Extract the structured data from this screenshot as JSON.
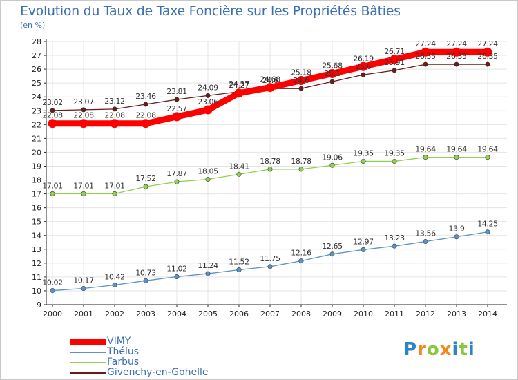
{
  "header": {
    "title": "Evolution du Taux de Taxe Foncière sur les Propriétés Bâties",
    "unit": "(en %)"
  },
  "logo": {
    "text": "Proxiti",
    "letters": [
      {
        "ch": "P",
        "color": "#2e83c7"
      },
      {
        "ch": "r",
        "color": "#f28a1b"
      },
      {
        "ch": "o",
        "color": "#8cc63f"
      },
      {
        "ch": "x",
        "color": "#f28a1b"
      },
      {
        "ch": "i",
        "color": "#2e83c7"
      },
      {
        "ch": "t",
        "color": "#8cc63f"
      },
      {
        "ch": "i",
        "color": "#2e83c7"
      }
    ]
  },
  "colors": {
    "axis": "#222222",
    "grid": "#e4e4e4",
    "tick_text": "#222222",
    "label_text": "#333333"
  },
  "chart_data": {
    "type": "line",
    "title": "Evolution du Taux de Taxe Foncière sur les Propriétés Bâties",
    "ylabel": "(en %)",
    "xlabel": "",
    "x": [
      "2000",
      "2001",
      "2002",
      "2003",
      "2004",
      "2005",
      "2006",
      "2007",
      "2008",
      "2009",
      "2010",
      "2011",
      "2012",
      "2013",
      "2014"
    ],
    "ylim": [
      9,
      28
    ],
    "yticks": [
      "9",
      "10",
      "11",
      "12",
      "13",
      "14",
      "15",
      "16",
      "17",
      "18",
      "19",
      "20",
      "21",
      "22",
      "23",
      "24",
      "25",
      "26",
      "27",
      "28"
    ],
    "grid": true,
    "legend_position": "bottom-left",
    "series": [
      {
        "name": "VIMY",
        "color": "#ff0000",
        "emphasis": "thick",
        "values": [
          22.08,
          22.08,
          22.08,
          22.08,
          22.57,
          23.06,
          24.27,
          24.68,
          25.18,
          25.68,
          26.19,
          26.71,
          27.24,
          27.24,
          27.24
        ],
        "labels": [
          "22.08",
          "22.08",
          "22.08",
          "22.08",
          "22.57",
          "23.06",
          "24.27",
          "24.68",
          "25.18",
          "25.68",
          "26.19",
          "26.71",
          "27.24",
          "27.24",
          "27.24"
        ]
      },
      {
        "name": "Thélus",
        "color": "#5b93c9",
        "emphasis": "normal",
        "values": [
          10.02,
          10.17,
          10.42,
          10.73,
          11.02,
          11.24,
          11.52,
          11.75,
          12.16,
          12.65,
          12.97,
          13.23,
          13.56,
          13.9,
          14.25
        ],
        "labels": [
          "10.02",
          "10.17",
          "10.42",
          "10.73",
          "11.02",
          "11.24",
          "11.52",
          "11.75",
          "12.16",
          "12.65",
          "12.97",
          "13.23",
          "13.56",
          "13.9",
          "14.25"
        ]
      },
      {
        "name": "Farbus",
        "color": "#8fd14f",
        "emphasis": "normal",
        "values": [
          17.01,
          17.01,
          17.01,
          17.52,
          17.87,
          18.05,
          18.41,
          18.78,
          18.78,
          19.06,
          19.35,
          19.35,
          19.64,
          19.64,
          19.64
        ],
        "labels": [
          "17.01",
          "17.01",
          "17.01",
          "17.52",
          "17.87",
          "18.05",
          "18.41",
          "18.78",
          "18.78",
          "19.06",
          "19.35",
          "19.35",
          "19.64",
          "19.64",
          "19.64"
        ]
      },
      {
        "name": "Givenchy-en-Gohelle",
        "color": "#6b1a1a",
        "emphasis": "normal",
        "values": [
          23.02,
          23.07,
          23.12,
          23.46,
          23.81,
          24.09,
          24.37,
          24.6,
          24.6,
          25.1,
          25.6,
          25.91,
          26.35,
          26.35,
          26.35
        ],
        "labels": [
          "23.02",
          "23.07",
          "23.12",
          "23.46",
          "23.81",
          "24.09",
          "24.37",
          "24.6",
          "24.6",
          "25.1",
          "25.6",
          "25.91",
          "26.35",
          "26.35",
          "26.35"
        ]
      }
    ]
  }
}
